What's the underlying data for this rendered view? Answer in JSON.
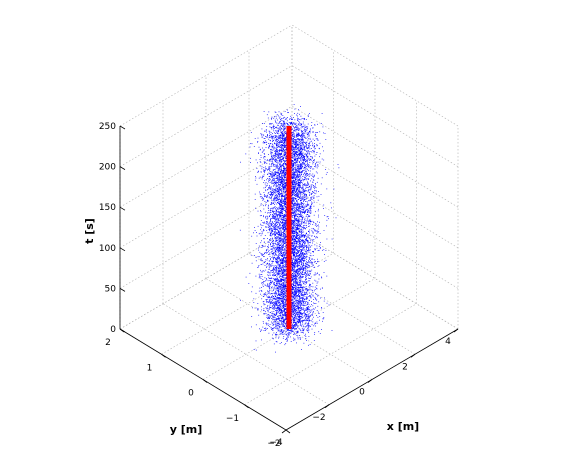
{
  "chart_data": {
    "type": "scatter",
    "projection": "3d",
    "title": "",
    "xlabel": "x [m]",
    "ylabel": "y [m]",
    "zlabel": "t [s]",
    "xlim": [
      -4,
      4
    ],
    "ylim": [
      -2,
      2
    ],
    "zlim": [
      0,
      250
    ],
    "x_ticks": [
      "−4",
      "−2",
      "0",
      "2",
      "4"
    ],
    "y_ticks": [
      "−2",
      "−1",
      "0",
      "1",
      "2"
    ],
    "z_ticks": [
      "0",
      "50",
      "100",
      "150",
      "200",
      "250"
    ],
    "grid": true,
    "legend": "none",
    "series": [
      {
        "kind": "scatter-cloud",
        "color": "#0000ff",
        "center_x": 0,
        "center_y": 0,
        "spread_xy_std_m": 0.3,
        "t_range": [
          0,
          250
        ],
        "num_points": 9000
      },
      {
        "kind": "line",
        "color": "#ff0000",
        "x": [
          0,
          0
        ],
        "y": [
          0,
          0
        ],
        "t": [
          0,
          250
        ]
      }
    ]
  }
}
